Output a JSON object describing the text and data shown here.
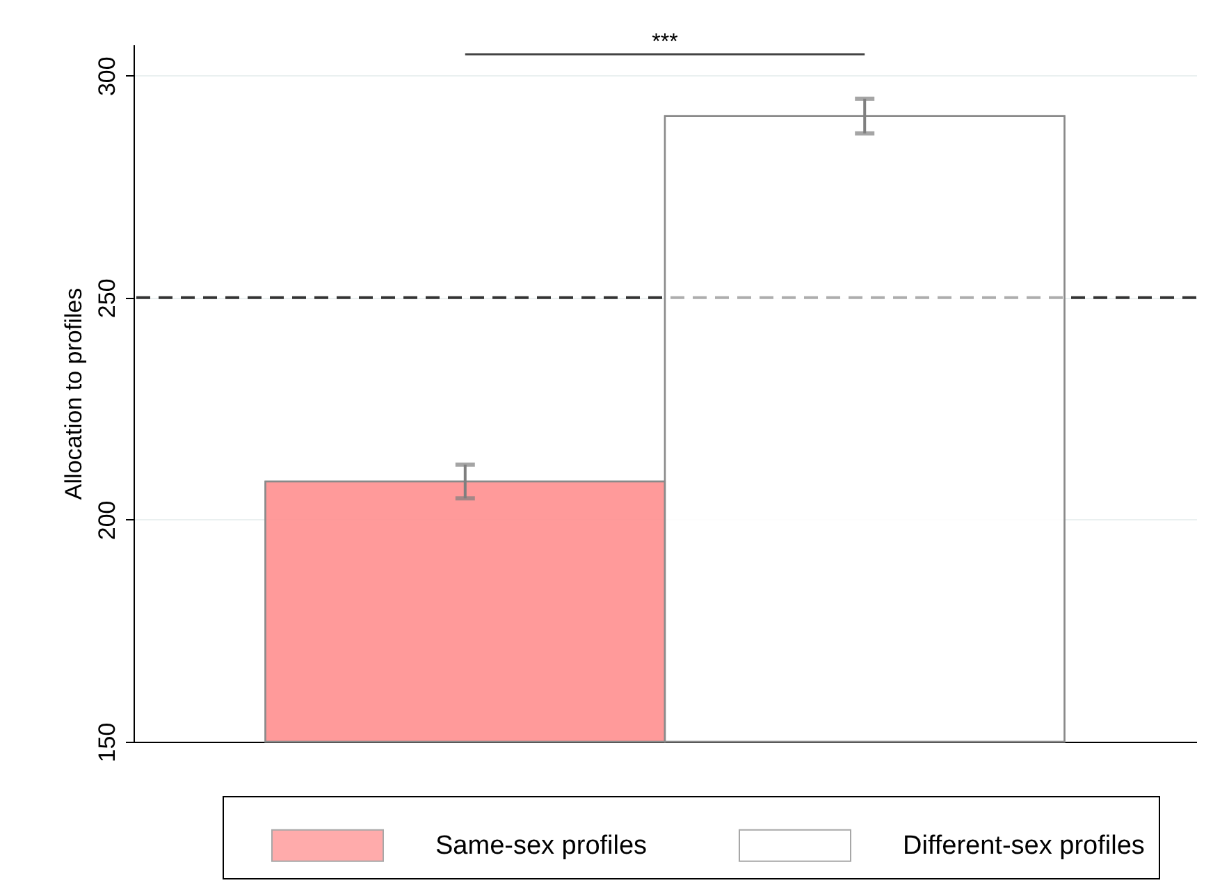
{
  "chart_data": {
    "type": "bar",
    "ylabel": "Allocation to profiles",
    "categories": [
      null,
      null
    ],
    "series": [
      {
        "name": "Same-sex profiles",
        "color": "#ff8f8f",
        "values": [
          208.6,
          null
        ],
        "errors": [
          3.8,
          null
        ]
      },
      {
        "name": "Different-sex profiles",
        "color": "#ffffff",
        "values": [
          null,
          290.9
        ],
        "errors": [
          null,
          3.9
        ]
      }
    ],
    "ylim": [
      150,
      307
    ],
    "yticks": [
      150,
      200,
      250,
      300
    ],
    "grid": "y",
    "legend": "bottom",
    "tick_labels": "y",
    "ref_lines": [
      {
        "axis": "y",
        "value": 250,
        "line_style": "dashed",
        "color": "#333333"
      }
    ],
    "annotations": [
      "***"
    ]
  }
}
